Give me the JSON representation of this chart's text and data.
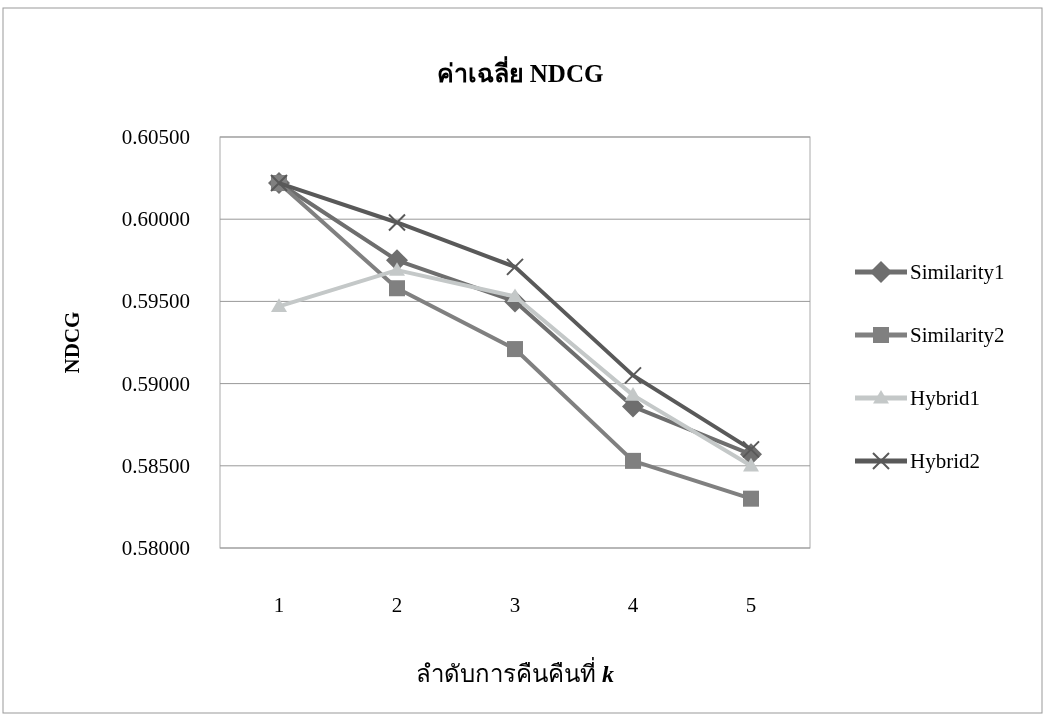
{
  "chart_data": {
    "type": "line",
    "title": "ค่าเฉลี่ย NDCG",
    "xlabel": "ลำดับการคืนคืนที่ *k*",
    "ylabel": "NDCG",
    "categories": [
      "1",
      "2",
      "3",
      "4",
      "5"
    ],
    "series": [
      {
        "name": "Similarity1",
        "color": "#6e6e6e",
        "marker": "diamond",
        "values": [
          0.6022,
          0.5975,
          0.595,
          0.5886,
          0.5857
        ]
      },
      {
        "name": "Similarity2",
        "color": "#808080",
        "marker": "square",
        "values": [
          0.6022,
          0.5958,
          0.5921,
          0.5853,
          0.583
        ]
      },
      {
        "name": "Hybrid1",
        "color": "#c4c8c8",
        "marker": "triangle",
        "values": [
          0.5947,
          0.5969,
          0.5953,
          0.5893,
          0.585
        ]
      },
      {
        "name": "Hybrid2",
        "color": "#595959",
        "marker": "cross",
        "values": [
          0.6022,
          0.5998,
          0.5971,
          0.5905,
          0.586
        ]
      }
    ],
    "ylim": [
      0.58,
      0.605
    ],
    "yticks": [
      {
        "value": 0.58,
        "label": "0.58000"
      },
      {
        "value": 0.585,
        "label": "0.58500"
      },
      {
        "value": 0.59,
        "label": "0.59000"
      },
      {
        "value": 0.595,
        "label": "0.59500"
      },
      {
        "value": 0.6,
        "label": "0.60000"
      },
      {
        "value": 0.605,
        "label": "0.60500"
      }
    ],
    "grid": "y",
    "legend": "right"
  }
}
